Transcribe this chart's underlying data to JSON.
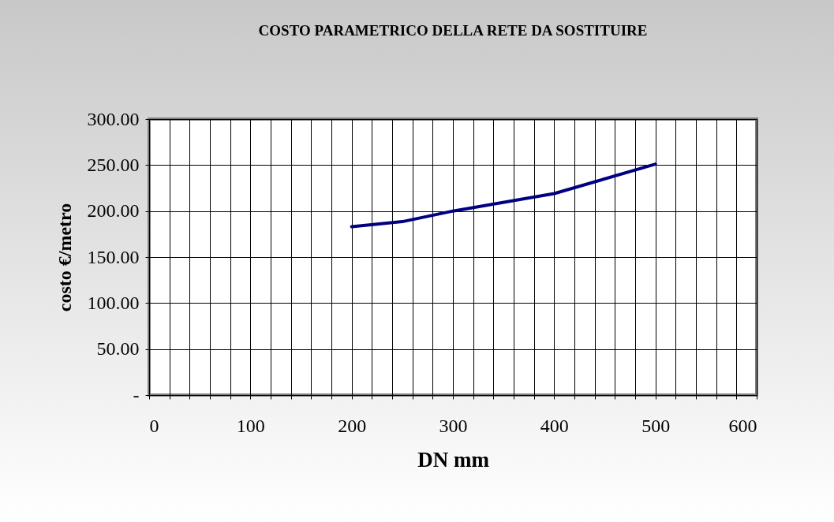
{
  "chart_data": {
    "type": "line",
    "title": "COSTO PARAMETRICO DELLA RETE DA SOSTITUIRE",
    "xlabel": "DN mm",
    "ylabel": "costo €/metro",
    "x": [
      200,
      250,
      300,
      400,
      500
    ],
    "series": [
      {
        "color": "#000080",
        "values": [
          183,
          188.5,
          200,
          219,
          251
        ]
      }
    ],
    "xlim": [
      0,
      600
    ],
    "xticks": [
      0,
      {
        "value": 20,
        "label": null
      },
      {
        "value": 40,
        "label": null
      },
      {
        "value": 60,
        "label": null
      },
      {
        "value": 80,
        "label": null
      },
      100,
      {
        "value": 120,
        "label": null
      },
      {
        "value": 140,
        "label": null
      },
      {
        "value": 160,
        "label": null
      },
      {
        "value": 180,
        "label": null
      },
      200,
      {
        "value": 220,
        "label": null
      },
      {
        "value": 240,
        "label": null
      },
      {
        "value": 260,
        "label": null
      },
      {
        "value": 280,
        "label": null
      },
      300,
      {
        "value": 320,
        "label": null
      },
      {
        "value": 340,
        "label": null
      },
      {
        "value": 360,
        "label": null
      },
      {
        "value": 380,
        "label": null
      },
      400,
      {
        "value": 420,
        "label": null
      },
      {
        "value": 440,
        "label": null
      },
      {
        "value": 460,
        "label": null
      },
      {
        "value": 480,
        "label": null
      },
      500,
      {
        "value": 520,
        "label": null
      },
      {
        "value": 540,
        "label": null
      },
      {
        "value": 560,
        "label": null
      },
      {
        "value": 580,
        "label": null
      },
      600
    ],
    "ylim": [
      0,
      300
    ],
    "yticks": [
      {
        "value": 0,
        "label": "-"
      },
      {
        "value": 50,
        "label": "50.00"
      },
      {
        "value": 100,
        "label": "100.00"
      },
      {
        "value": 150,
        "label": "150.00"
      },
      {
        "value": 200,
        "label": "200.00"
      },
      {
        "value": 250,
        "label": "250.00"
      },
      {
        "value": 300,
        "label": "300.00"
      }
    ],
    "grid": true,
    "legend": false,
    "marker": "none",
    "line_style": "solid"
  }
}
